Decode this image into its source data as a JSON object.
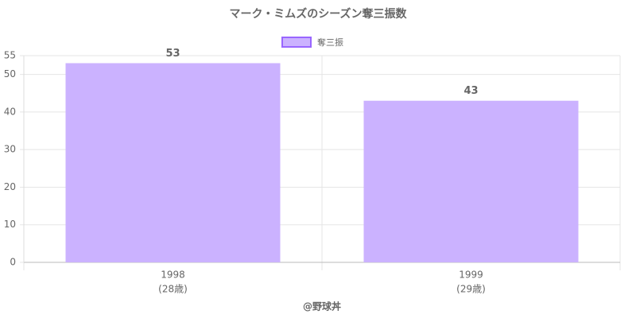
{
  "chart_data": {
    "type": "bar",
    "title": "マーク・ミムズのシーズン奪三振数",
    "categories": [
      "1998",
      "1999"
    ],
    "category_sublabels": [
      "(28歳)",
      "(29歳)"
    ],
    "series": [
      {
        "name": "奪三振",
        "color": "#cbb2ff",
        "values": [
          53,
          43
        ]
      }
    ],
    "x_label": "@野球丼",
    "ylim": [
      0,
      55
    ],
    "yticks": [
      0,
      10,
      20,
      30,
      40,
      50,
      55
    ],
    "grid": true,
    "legend": "top"
  }
}
